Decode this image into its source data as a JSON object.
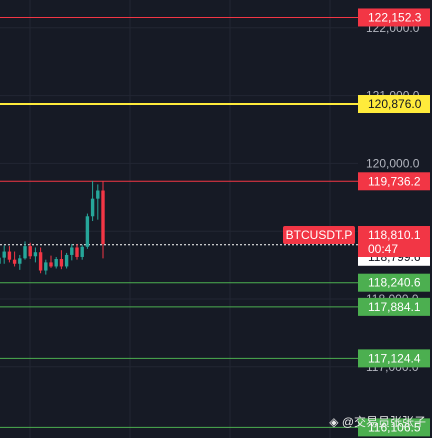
{
  "chart_data": {
    "type": "candlestick",
    "symbol": "BTCUSDT.P",
    "countdown": "00:47",
    "current_price": "118,810.1",
    "y_ticks": [
      "122,000.0",
      "121,000.0",
      "120,000.0",
      "119,000.0",
      "118,000.0",
      "117,000.0"
    ],
    "y_ticks_values": [
      122000,
      121000,
      120000,
      119000,
      118000,
      117000
    ],
    "ylim": [
      115950,
      122410
    ],
    "levels": [
      {
        "price": 122152.3,
        "label": "122,152.3",
        "kind": "red"
      },
      {
        "price": 120876.0,
        "label": "120,876.0",
        "kind": "yellow"
      },
      {
        "price": 119736.2,
        "label": "119,736.2",
        "kind": "red"
      },
      {
        "price": 118799.6,
        "label": "118,799.6",
        "kind": "white"
      },
      {
        "price": 118240.6,
        "label": "118,240.6",
        "kind": "green"
      },
      {
        "price": 117884.1,
        "label": "117,884.1",
        "kind": "green"
      },
      {
        "price": 117124.4,
        "label": "117,124.4",
        "kind": "green"
      },
      {
        "price": 116106.5,
        "label": "116,106.5",
        "kind": "green"
      }
    ],
    "colors": {
      "red": "#f23645",
      "yellow": "#ffeb3b",
      "green": "#4caf50",
      "white": "#ffffff",
      "up": "#26a69a",
      "down": "#f23645"
    },
    "candles": [
      {
        "o": 118520,
        "h": 118700,
        "l": 118430,
        "c": 118610
      },
      {
        "o": 118610,
        "h": 118790,
        "l": 118520,
        "c": 118700
      },
      {
        "o": 118700,
        "h": 118780,
        "l": 118540,
        "c": 118580
      },
      {
        "o": 118580,
        "h": 118700,
        "l": 118480,
        "c": 118520
      },
      {
        "o": 118520,
        "h": 118650,
        "l": 118430,
        "c": 118600
      },
      {
        "o": 118600,
        "h": 118850,
        "l": 118580,
        "c": 118780
      },
      {
        "o": 118780,
        "h": 118830,
        "l": 118590,
        "c": 118630
      },
      {
        "o": 118630,
        "h": 118760,
        "l": 118540,
        "c": 118690
      },
      {
        "o": 118690,
        "h": 118760,
        "l": 118380,
        "c": 118420
      },
      {
        "o": 118420,
        "h": 118580,
        "l": 118360,
        "c": 118540
      },
      {
        "o": 118540,
        "h": 118640,
        "l": 118460,
        "c": 118480
      },
      {
        "o": 118480,
        "h": 118620,
        "l": 118450,
        "c": 118590
      },
      {
        "o": 118590,
        "h": 118720,
        "l": 118440,
        "c": 118480
      },
      {
        "o": 118480,
        "h": 118680,
        "l": 118450,
        "c": 118650
      },
      {
        "o": 118650,
        "h": 118810,
        "l": 118570,
        "c": 118760
      },
      {
        "o": 118760,
        "h": 118810,
        "l": 118580,
        "c": 118620
      },
      {
        "o": 118620,
        "h": 118800,
        "l": 118580,
        "c": 118770
      },
      {
        "o": 118770,
        "h": 119260,
        "l": 118740,
        "c": 119220
      },
      {
        "o": 119220,
        "h": 119740,
        "l": 119150,
        "c": 119480
      },
      {
        "o": 119480,
        "h": 119690,
        "l": 119170,
        "c": 119600
      },
      {
        "o": 119600,
        "h": 119740,
        "l": 118600,
        "c": 118810
      }
    ]
  },
  "watermark": "◈ @交易员张张子"
}
